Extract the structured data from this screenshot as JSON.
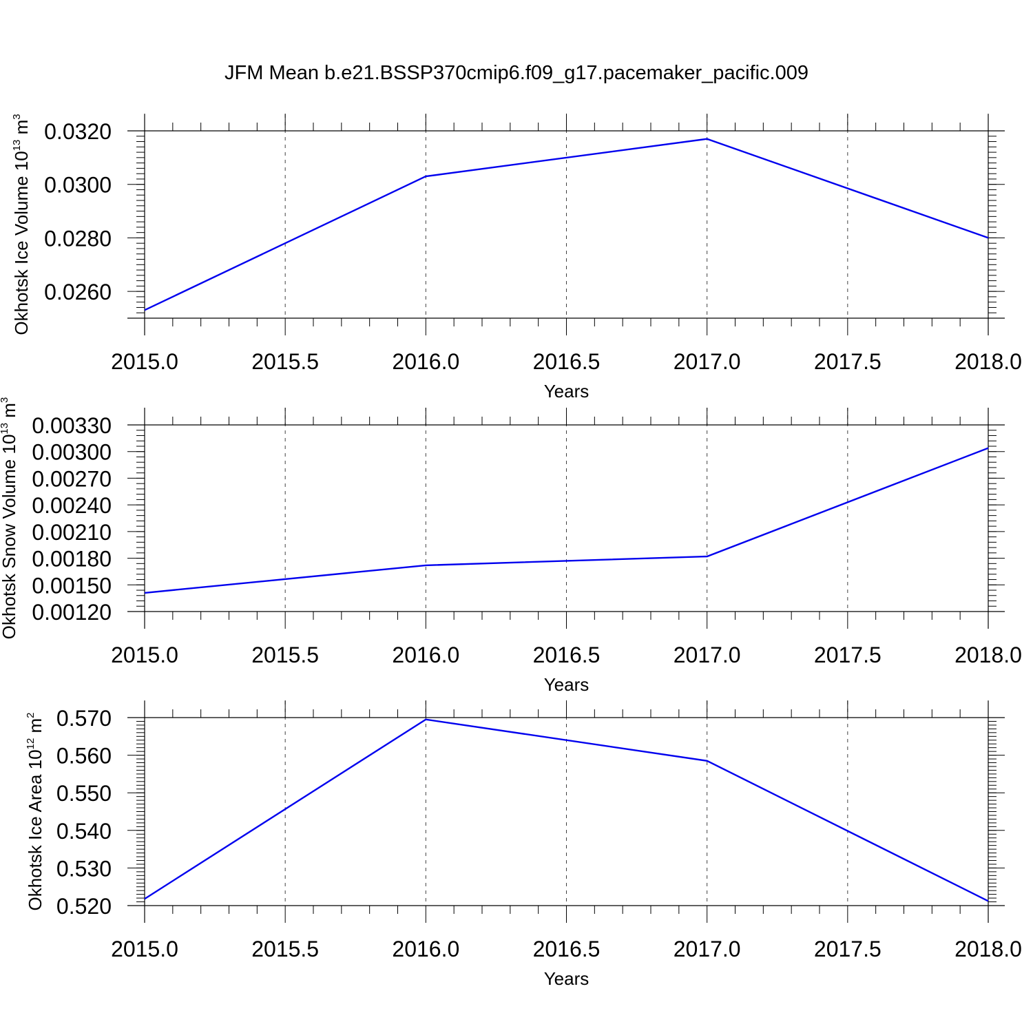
{
  "title": "JFM Mean b.e21.BSSP370cmip6.f09_g17.pacemaker_pacific.009",
  "chart_data": [
    {
      "type": "line",
      "title": "",
      "xlabel": "Years",
      "ylabel": {
        "main": "Okhotsk Ice Volume 10",
        "sup": "13",
        "unit": " m",
        "unit_sup": "3"
      },
      "x": [
        2015,
        2016,
        2017,
        2018
      ],
      "series": [
        {
          "values": [
            0.0253,
            0.0303,
            0.0317,
            0.028
          ],
          "color": "#0000ee"
        }
      ],
      "xlim": [
        2015,
        2018
      ],
      "ylim": [
        0.025,
        0.032
      ],
      "xticks": [
        "2015.0",
        "2015.5",
        "2016.0",
        "2016.5",
        "2017.0",
        "2017.5",
        "2018.0"
      ],
      "yticks": [
        "0.0260",
        "0.0280",
        "0.0300",
        "0.0320"
      ],
      "grid": "x-dashed"
    },
    {
      "type": "line",
      "title": "",
      "xlabel": "Years",
      "ylabel": {
        "main": "Okhotsk Snow Volume 10",
        "sup": "13",
        "unit": " m",
        "unit_sup": "3"
      },
      "x": [
        2015,
        2016,
        2017,
        2018
      ],
      "series": [
        {
          "values": [
            0.00141,
            0.00172,
            0.00182,
            0.00304
          ],
          "color": "#0000ee"
        }
      ],
      "xlim": [
        2015,
        2018
      ],
      "ylim": [
        0.0012,
        0.0033
      ],
      "xticks": [
        "2015.0",
        "2015.5",
        "2016.0",
        "2016.5",
        "2017.0",
        "2017.5",
        "2018.0"
      ],
      "yticks": [
        "0.00120",
        "0.00150",
        "0.00180",
        "0.00210",
        "0.00240",
        "0.00270",
        "0.00300",
        "0.00330"
      ],
      "grid": "x-dashed"
    },
    {
      "type": "line",
      "title": "",
      "xlabel": "Years",
      "ylabel": {
        "main": "Okhotsk Ice Area 10",
        "sup": "12",
        "unit": " m",
        "unit_sup": "2"
      },
      "x": [
        2015,
        2016,
        2017,
        2018
      ],
      "series": [
        {
          "values": [
            0.5218,
            0.5695,
            0.5585,
            0.5212
          ],
          "color": "#0000ee"
        }
      ],
      "xlim": [
        2015,
        2018
      ],
      "ylim": [
        0.52,
        0.57
      ],
      "xticks": [
        "2015.0",
        "2015.5",
        "2016.0",
        "2016.5",
        "2017.0",
        "2017.5",
        "2018.0"
      ],
      "yticks": [
        "0.520",
        "0.530",
        "0.540",
        "0.550",
        "0.560",
        "0.570"
      ],
      "grid": "x-dashed"
    }
  ]
}
